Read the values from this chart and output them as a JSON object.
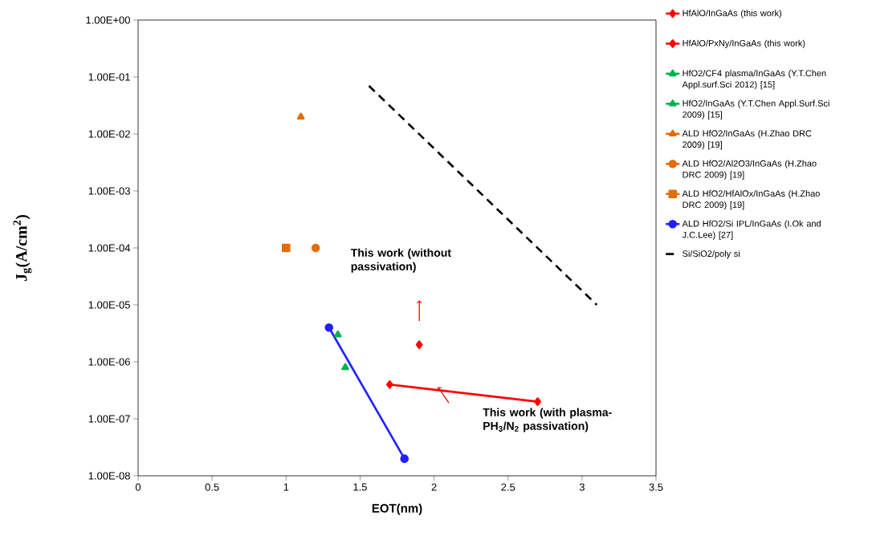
{
  "chart_data": {
    "type": "line",
    "xlabel": "EOT(nm)",
    "ylabel": "J$_{g}$(A/cm$^{2}$)",
    "log": "y",
    "grid": false,
    "legend": "right",
    "xlim": [
      0,
      3.5
    ],
    "xticks": [
      0,
      0.5,
      1,
      1.5,
      2,
      2.5,
      3,
      3.5
    ],
    "ylim": [
      1e-08,
      1
    ],
    "yticks": [
      {
        "value": 1e-08,
        "label": "1.00E-08"
      },
      {
        "value": 1e-07,
        "label": "1.00E-07"
      },
      {
        "value": 1e-06,
        "label": "1.00E-06"
      },
      {
        "value": 1e-05,
        "label": "1.00E-05"
      },
      {
        "value": 0.0001,
        "label": "1.00E-04"
      },
      {
        "value": 0.001,
        "label": "1.00E-03"
      },
      {
        "value": 0.01,
        "label": "1.00E-02"
      },
      {
        "value": 0.1,
        "label": "1.00E-01"
      },
      {
        "value": 1,
        "label": "1.00E+00"
      }
    ],
    "series": [
      {
        "name": "HfAlO/InGaAs (this work)",
        "color": "#ff0000",
        "marker": "diamond",
        "x": [
          1.9
        ],
        "values": [
          2e-06
        ]
      },
      {
        "name": "HfAlO/PxNy/InGaAs (this work)",
        "color": "#ff0000",
        "marker": "diamond",
        "x": [
          1.7,
          2.7
        ],
        "values": [
          4e-07,
          2e-07
        ]
      },
      {
        "name": "HfO2/CF4 plasma/InGaAs (Y.T.Chen Appl.surf.Sci 2012) [15]",
        "color": "#00b050",
        "marker": "triangle",
        "x": [
          1.4
        ],
        "values": [
          8e-07
        ]
      },
      {
        "name": "HfO2/InGaAs (Y.T.Chen Appl.Surf.Sci 2009) [15]",
        "color": "#00b050",
        "marker": "triangle",
        "x": [
          1.35
        ],
        "values": [
          3e-06
        ]
      },
      {
        "name": "ALD HfO2/InGaAs (H.Zhao DRC 2009) [19]",
        "color": "#e46c0a",
        "marker": "triangle",
        "x": [
          1.1
        ],
        "values": [
          0.02
        ]
      },
      {
        "name": "ALD HfO2/Al2O3/InGaAs (H.Zhao DRC 2009) [19]",
        "color": "#e46c0a",
        "marker": "circle",
        "x": [
          1.2
        ],
        "values": [
          0.0001
        ]
      },
      {
        "name": "ALD HfO2/HfAlOx/InGaAs (H.Zhao DRC 2009) [19]",
        "color": "#e46c0a",
        "marker": "square",
        "x": [
          1.0
        ],
        "values": [
          0.0001
        ]
      },
      {
        "name": "ALD HfO2/Si IPL/InGaAs (I.Ok and J.C.Lee) [27]",
        "color": "#1f1fff",
        "marker": "circle",
        "x": [
          1.29,
          1.8
        ],
        "values": [
          4e-06,
          2e-08
        ]
      },
      {
        "name": "Si/SiO2/poly si",
        "color": "#000000",
        "marker": "none",
        "line_style": "dashed",
        "x": [
          1.56,
          3.1
        ],
        "values": [
          0.07,
          1e-05
        ]
      }
    ],
    "annotations": [
      "This work (without passivation)",
      "This work (with plasma-PH$_{3}$/N$_{2}$ passivation)"
    ]
  }
}
